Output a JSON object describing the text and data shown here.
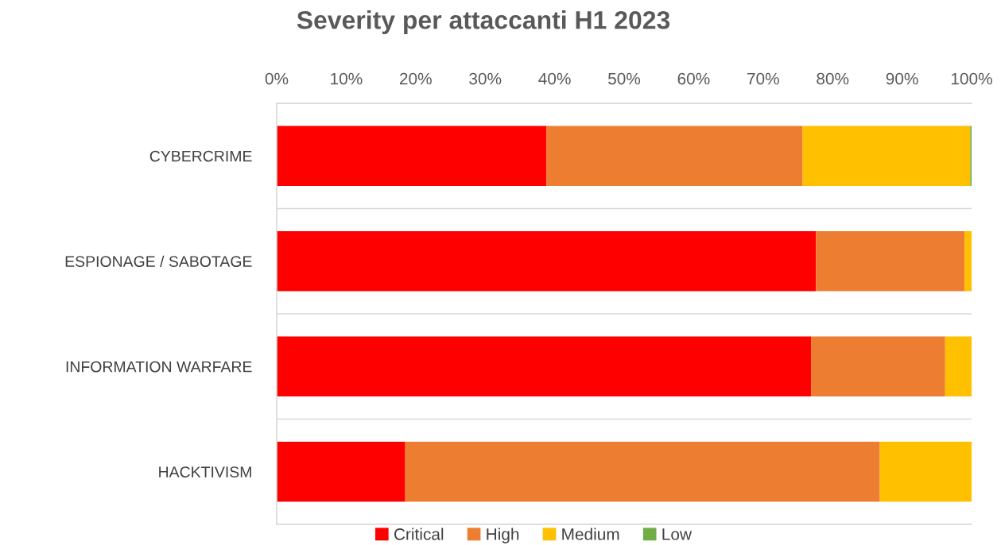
{
  "chart_data": {
    "type": "bar",
    "title": "Severity per attaccanti H1 2023",
    "orientation": "horizontal",
    "stacked": true,
    "categories": [
      "CYBERCRIME",
      "ESPIONAGE / SABOTAGE",
      "INFORMATION WARFARE",
      "HACKTIVISM"
    ],
    "series": [
      {
        "name": "Critical",
        "color": "#ff0000",
        "values": [
          38.8,
          77.6,
          76.9,
          18.5
        ]
      },
      {
        "name": "High",
        "color": "#ed7d31",
        "values": [
          36.9,
          21.4,
          19.3,
          68.3
        ]
      },
      {
        "name": "Medium",
        "color": "#ffc000",
        "values": [
          24.1,
          1.0,
          3.8,
          13.2
        ]
      },
      {
        "name": "Low",
        "color": "#70ad47",
        "values": [
          0.2,
          null,
          null,
          null
        ]
      }
    ],
    "xlim": [
      0,
      100
    ],
    "xticks": [
      {
        "value": 0,
        "label": "0%"
      },
      {
        "value": 10,
        "label": "10%"
      },
      {
        "value": 20,
        "label": "20%"
      },
      {
        "value": 30,
        "label": "30%"
      },
      {
        "value": 40,
        "label": "40%"
      },
      {
        "value": 50,
        "label": "50%"
      },
      {
        "value": 60,
        "label": "60%"
      },
      {
        "value": 70,
        "label": "70%"
      },
      {
        "value": 80,
        "label": "80%"
      },
      {
        "value": 90,
        "label": "90%"
      },
      {
        "value": 100,
        "label": "100%"
      }
    ],
    "grid": "y",
    "legend": "bottom"
  }
}
